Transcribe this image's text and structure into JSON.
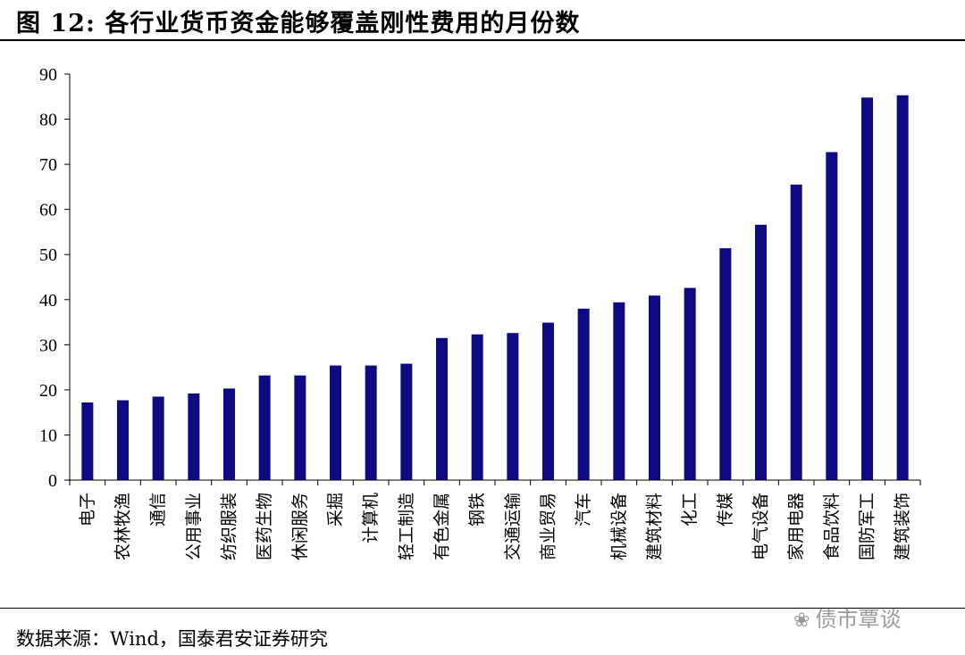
{
  "figure": {
    "title": "图 12:  各行业货币资金能够覆盖刚性费用的月份数",
    "source": "数据来源：Wind，国泰君安证券研究",
    "watermark": "债市覃谈",
    "watermark_icon": "wechat-icon"
  },
  "colors": {
    "bar": "#0d0a82",
    "axis": "#000000"
  },
  "chart_data": {
    "type": "bar",
    "title": "",
    "xlabel": "",
    "ylabel": "",
    "ylim": [
      0,
      90
    ],
    "yticks": [
      0,
      10,
      20,
      30,
      40,
      50,
      60,
      70,
      80,
      90
    ],
    "grid": false,
    "legend": "none",
    "categories": [
      "电子",
      "农林牧渔",
      "通信",
      "公用事业",
      "纺织服装",
      "医药生物",
      "休闲服务",
      "采掘",
      "计算机",
      "轻工制造",
      "有色金属",
      "钢铁",
      "交通运输",
      "商业贸易",
      "汽车",
      "机械设备",
      "建筑材料",
      "化工",
      "传媒",
      "电气设备",
      "家用电器",
      "食品饮料",
      "国防军工",
      "建筑装饰"
    ],
    "values": [
      17.2,
      17.7,
      18.5,
      19.2,
      20.3,
      23.2,
      23.2,
      25.4,
      25.4,
      25.8,
      31.5,
      32.3,
      32.6,
      34.9,
      38.0,
      39.4,
      40.9,
      42.6,
      51.4,
      56.6,
      65.5,
      72.7,
      84.8,
      85.3
    ]
  }
}
